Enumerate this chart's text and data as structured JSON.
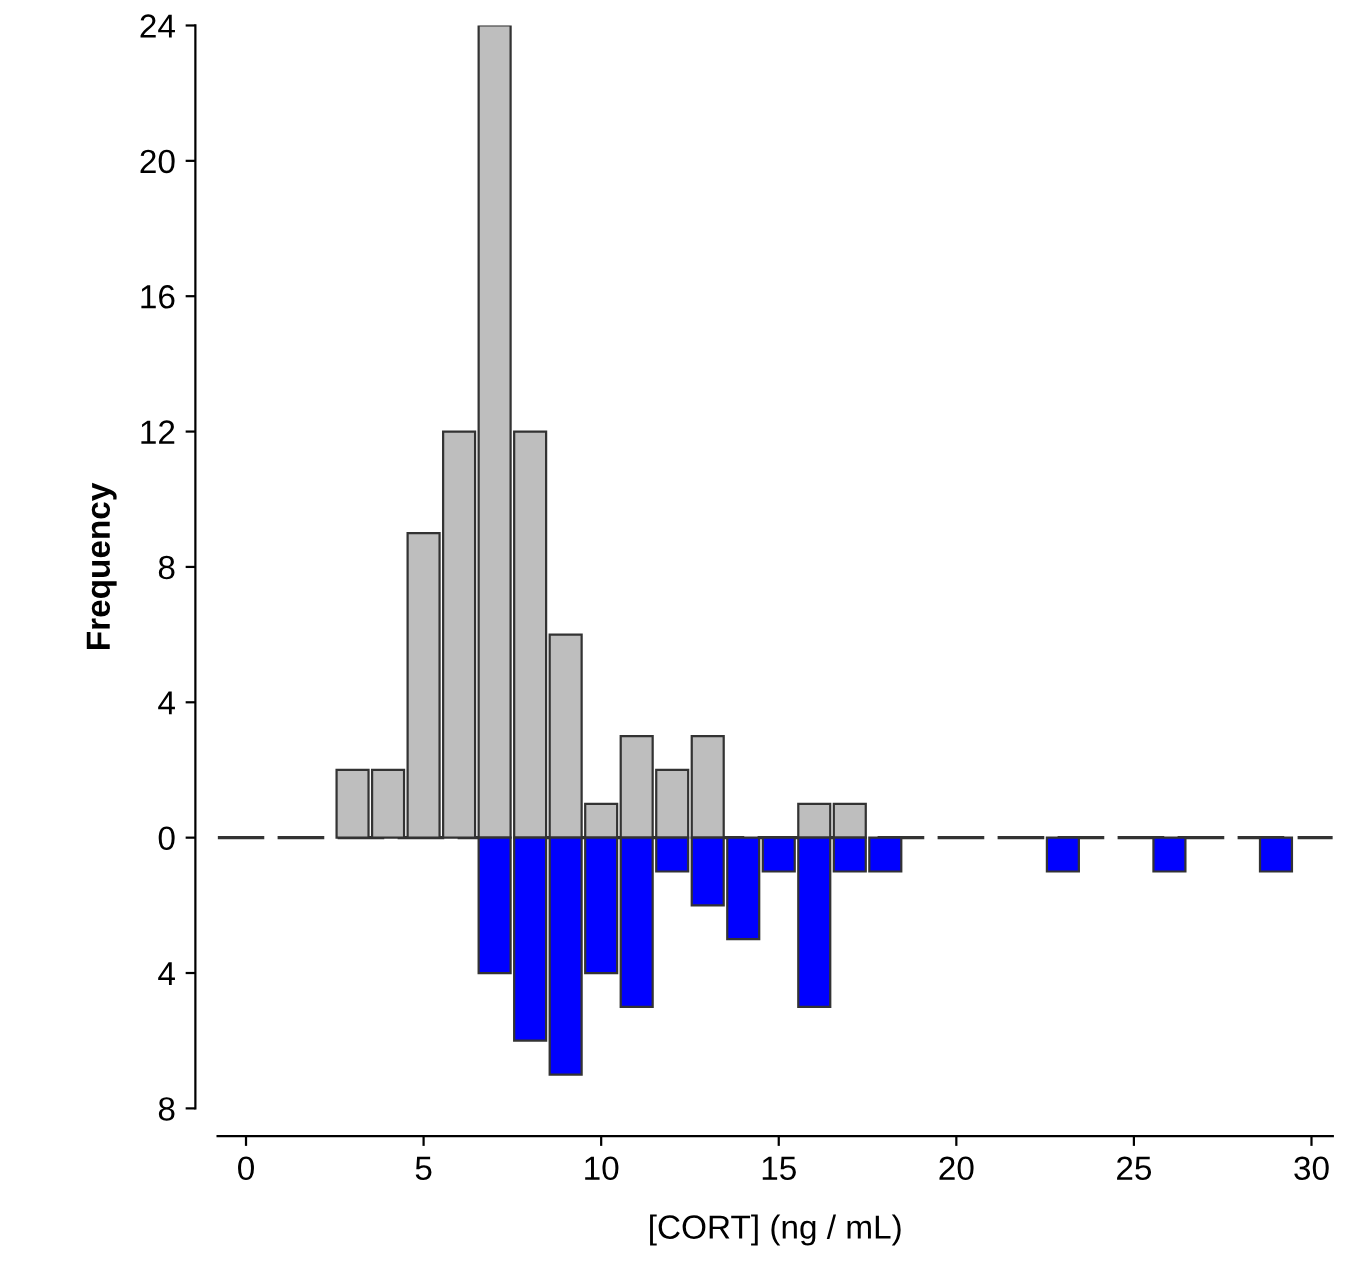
{
  "chart_data": {
    "type": "bar",
    "xlabel": "[CORT] (ng / mL)",
    "ylabel": "Frequency",
    "x": [
      0,
      1,
      2,
      3,
      4,
      5,
      6,
      7,
      8,
      9,
      10,
      11,
      12,
      13,
      14,
      15,
      16,
      17,
      18,
      19,
      20,
      21,
      22,
      23,
      24,
      25,
      26,
      27,
      28,
      29
    ],
    "series": [
      {
        "color": "#bebebe",
        "values": [
          0,
          0,
          0,
          2,
          2,
          9,
          12,
          24,
          12,
          6,
          1,
          3,
          2,
          3,
          0,
          0,
          1,
          1,
          0,
          0,
          0,
          0,
          0,
          0,
          0,
          0,
          0,
          0,
          0,
          0
        ]
      },
      {
        "color": "#0000ff",
        "values": [
          0,
          0,
          0,
          0,
          0,
          0,
          0,
          -4,
          -6,
          -7,
          -4,
          -5,
          -1,
          -2,
          -3,
          -1,
          -5,
          -1,
          -1,
          0,
          0,
          0,
          0,
          -1,
          0,
          0,
          -1,
          0,
          0,
          -1
        ]
      }
    ],
    "xlim": [
      -0.8,
      30.6
    ],
    "xticks": [
      0,
      5,
      10,
      15,
      20,
      25,
      30
    ],
    "ylim": [
      -8,
      24
    ],
    "yticks": [
      {
        "value": -8,
        "label": "8"
      },
      {
        "value": -4,
        "label": "4"
      },
      0,
      4,
      8,
      12,
      16,
      20,
      24
    ],
    "ref_lines": [
      {
        "axis": "y",
        "value": 0,
        "color": "#333333",
        "line_style": "dashed"
      }
    ],
    "grid": false,
    "legend": false
  }
}
